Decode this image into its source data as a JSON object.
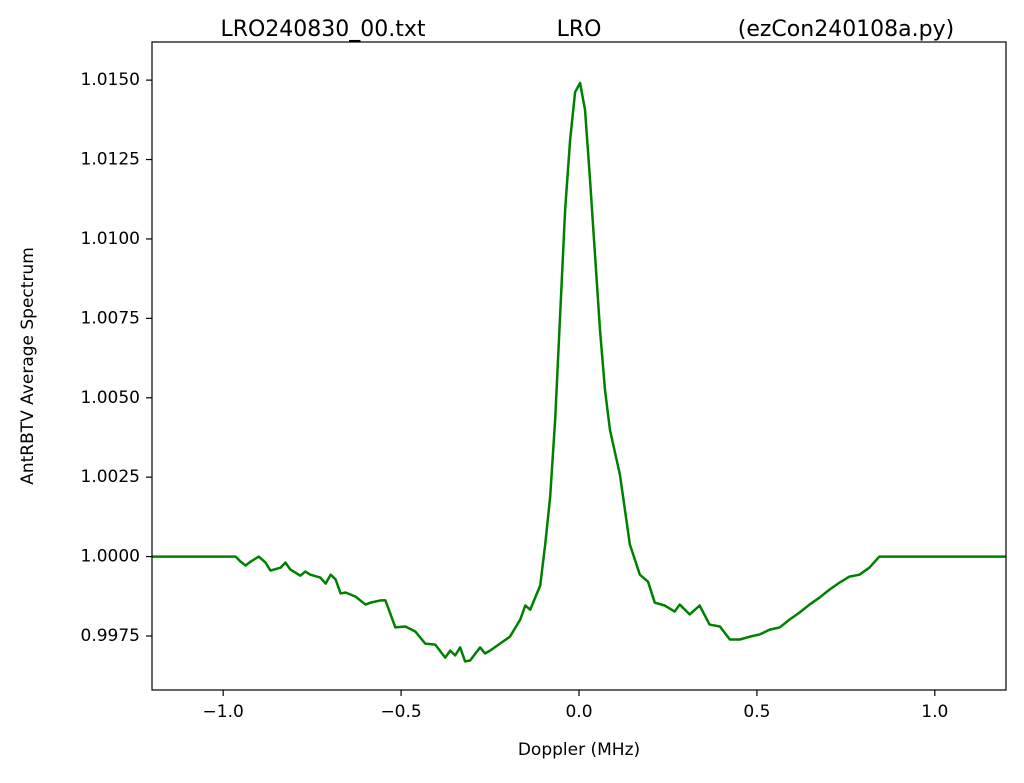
{
  "chart_data": {
    "type": "line",
    "title_left": "LRO240830_00.txt",
    "title": "LRO",
    "title_right": "(ezCon240108a.py)",
    "x_label": "Doppler (MHz)",
    "y_label": "AntRBTV Average Spectrum",
    "xlim": [
      -1.2,
      1.2
    ],
    "ylim": [
      0.9958,
      1.0162
    ],
    "xticks": [
      {
        "value": -1.0,
        "label": "−1.0"
      },
      {
        "value": -0.5,
        "label": "−0.5"
      },
      {
        "value": 0.0,
        "label": "0.0"
      },
      0.5,
      {
        "value": 1.0,
        "label": "1.0"
      }
    ],
    "yticks": [
      0.9975,
      {
        "value": 1.0,
        "label": "1.0000"
      },
      1.0025,
      {
        "value": 1.005,
        "label": "1.0050"
      },
      1.0075,
      {
        "value": 1.01,
        "label": "1.0100"
      },
      1.0125,
      {
        "value": 1.015,
        "label": "1.0150"
      }
    ],
    "grid": false,
    "series": [
      {
        "name": "spectrum",
        "color": "#008000",
        "x": [
          -1.2,
          -0.965,
          -0.951,
          -0.937,
          -0.923,
          -0.9,
          -0.881,
          -0.867,
          -0.839,
          -0.825,
          -0.811,
          -0.783,
          -0.769,
          -0.755,
          -0.727,
          -0.712,
          -0.698,
          -0.684,
          -0.67,
          -0.656,
          -0.628,
          -0.6,
          -0.586,
          -0.558,
          -0.544,
          -0.516,
          -0.488,
          -0.46,
          -0.432,
          -0.404,
          -0.376,
          -0.362,
          -0.348,
          -0.334,
          -0.32,
          -0.306,
          -0.278,
          -0.264,
          -0.25,
          -0.222,
          -0.194,
          -0.165,
          -0.151,
          -0.137,
          -0.109,
          -0.095,
          -0.081,
          -0.067,
          -0.053,
          -0.039,
          -0.025,
          -0.011,
          0.003,
          0.017,
          0.031,
          0.045,
          0.059,
          0.073,
          0.087,
          0.115,
          0.143,
          0.171,
          0.194,
          0.213,
          0.241,
          0.269,
          0.283,
          0.311,
          0.339,
          0.367,
          0.396,
          0.424,
          0.452,
          0.48,
          0.508,
          0.536,
          0.564,
          0.592,
          0.62,
          0.648,
          0.676,
          0.704,
          0.732,
          0.76,
          0.788,
          0.816,
          0.844,
          1.2
        ],
        "values": [
          1.0,
          1.0,
          0.99984,
          0.99972,
          0.99984,
          1.0,
          0.99981,
          0.99956,
          0.99965,
          0.99981,
          0.99959,
          0.9994,
          0.99953,
          0.99943,
          0.99934,
          0.99915,
          0.99943,
          0.99928,
          0.99884,
          0.99887,
          0.99874,
          0.99849,
          0.99855,
          0.99862,
          0.99862,
          0.99777,
          0.9978,
          0.99764,
          0.99726,
          0.99723,
          0.99682,
          0.99704,
          0.99689,
          0.99714,
          0.9967,
          0.99673,
          0.99714,
          0.99695,
          0.99704,
          0.99726,
          0.99748,
          0.99802,
          0.99846,
          0.99833,
          0.99909,
          1.00038,
          1.00189,
          1.00431,
          1.00761,
          1.01091,
          1.01311,
          1.01462,
          1.01491,
          1.01406,
          1.01186,
          1.0095,
          1.00714,
          1.00525,
          1.00399,
          1.00258,
          1.00038,
          0.99943,
          0.99921,
          0.99855,
          0.99846,
          0.99827,
          0.99849,
          0.99818,
          0.99846,
          0.99786,
          0.9978,
          0.99739,
          0.99739,
          0.99748,
          0.99755,
          0.9977,
          0.99777,
          0.99802,
          0.99824,
          0.99849,
          0.99871,
          0.99896,
          0.99918,
          0.99937,
          0.99943,
          0.99965,
          1.0,
          1.0
        ]
      }
    ]
  }
}
